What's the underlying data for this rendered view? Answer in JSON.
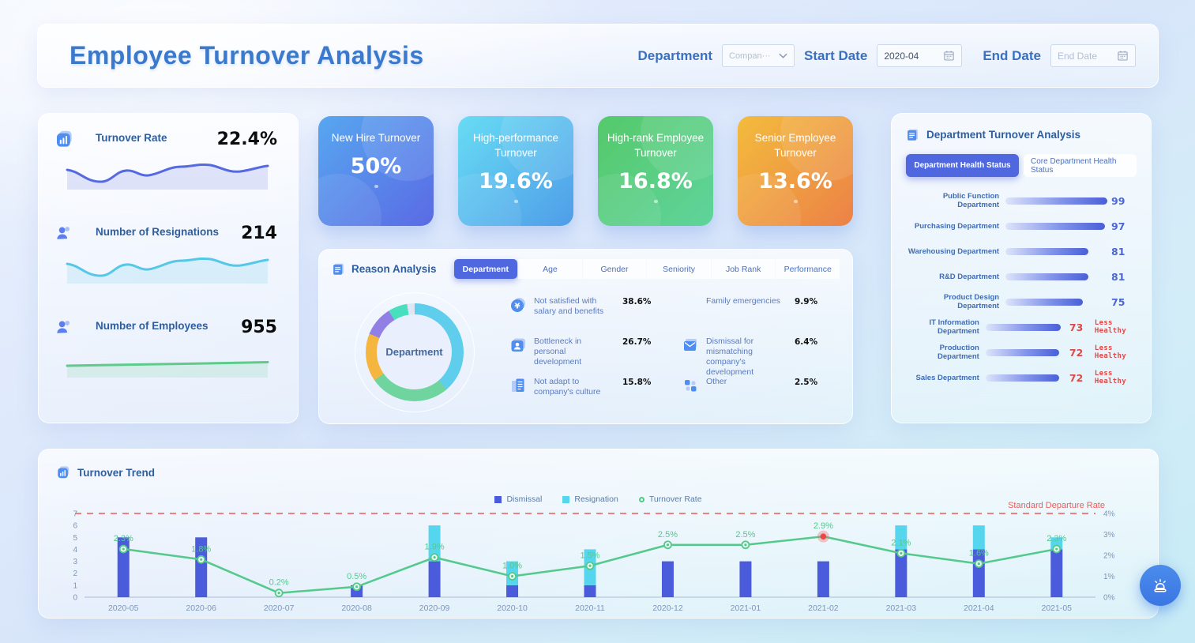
{
  "header": {
    "title": "Employee Turnover Analysis",
    "department_label": "Department",
    "department_value": "Compan···",
    "start_date_label": "Start Date",
    "start_date_value": "2020-04",
    "end_date_label": "End Date",
    "end_date_placeholder": "End Date"
  },
  "stats": {
    "items": [
      {
        "label": "Turnover Rate",
        "value": "22.4%",
        "color": "#5569e0"
      },
      {
        "label": "Number of Resignations",
        "value": "214",
        "color": "#55c8e8"
      },
      {
        "label": "Number of Employees",
        "value": "955",
        "color": "#5ecb8a"
      }
    ]
  },
  "kpi_cards": [
    {
      "title": "New Hire Turnover",
      "value": "50%",
      "from": "#57a7f0",
      "to": "#5a6ae4"
    },
    {
      "title": "High-performance Turnover",
      "value": "19.6%",
      "from": "#68dcf4",
      "to": "#4f9de8"
    },
    {
      "title": "High-rank Employee Turnover",
      "value": "16.8%",
      "from": "#55c96a",
      "to": "#5fd49c"
    },
    {
      "title": "Senior Employee Turnover",
      "value": "13.6%",
      "from": "#f3bc3c",
      "to": "#ec8147"
    }
  ],
  "reason": {
    "title": "Reason Analysis",
    "tabs": [
      {
        "label": "Department",
        "active": true
      },
      {
        "label": "Age",
        "active": false
      },
      {
        "label": "Gender",
        "active": false
      },
      {
        "label": "Seniority",
        "active": false
      },
      {
        "label": "Job Rank",
        "active": false
      },
      {
        "label": "Performance",
        "active": false
      }
    ],
    "center_label": "Department",
    "items": [
      {
        "label": "Not satisfied with salary and benefits",
        "value": "38.6%",
        "pct": 38.6,
        "color": "#5fcdec"
      },
      {
        "label": "Bottleneck in personal development",
        "value": "26.7%",
        "pct": 26.7,
        "color": "#6fd49e"
      },
      {
        "label": "Not adapt to company's culture",
        "value": "15.8%",
        "pct": 15.8,
        "color": "#f5b63f"
      },
      {
        "label": "Family emergencies",
        "value": "9.9%",
        "pct": 9.9,
        "color": "#927fe6"
      },
      {
        "label": "Dismissal for mismatching company's development",
        "value": "6.4%",
        "pct": 6.4,
        "color": "#49debe"
      },
      {
        "label": "Other",
        "value": "2.5%",
        "pct": 2.5,
        "color": "#dfe7f6"
      }
    ]
  },
  "department_panel": {
    "title": "Department Turnover Analysis",
    "tabs": [
      {
        "label": "Department Health Status",
        "active": true
      },
      {
        "label": "Core Department Health Status",
        "active": false
      }
    ],
    "max": 100,
    "rows": [
      {
        "label": "Public Function Department",
        "value": 99,
        "status": ""
      },
      {
        "label": "Purchasing Department",
        "value": 97,
        "status": ""
      },
      {
        "label": "Warehousing Department",
        "value": 81,
        "status": ""
      },
      {
        "label": "R&D Department",
        "value": 81,
        "status": ""
      },
      {
        "label": "Product Design Department",
        "value": 75,
        "status": ""
      },
      {
        "label": "IT Information Department",
        "value": 73,
        "status": "Less Healthy"
      },
      {
        "label": "Production Department",
        "value": 72,
        "status": "Less Healthy"
      },
      {
        "label": "Sales Department",
        "value": 72,
        "status": "Less Healthy"
      }
    ]
  },
  "trend": {
    "title": "Turnover Trend",
    "legend": [
      {
        "label": "Dismissal",
        "color": "#4a5cdc",
        "shape": "square"
      },
      {
        "label": "Resignation",
        "color": "#55d6ee",
        "shape": "square"
      },
      {
        "label": "Turnover Rate",
        "color": "#54c98c",
        "shape": "circle"
      }
    ],
    "chart_data": {
      "type": "bar+line",
      "categories": [
        "2020-05",
        "2020-06",
        "2020-07",
        "2020-08",
        "2020-09",
        "2020-10",
        "2020-11",
        "2020-12",
        "2021-01",
        "2021-02",
        "2021-03",
        "2021-04",
        "2021-05"
      ],
      "series": [
        {
          "name": "Dismissal",
          "type": "bar",
          "stack": true,
          "color": "#4a5cdc",
          "values": [
            5,
            5,
            0,
            1,
            3,
            1,
            1,
            3,
            3,
            3,
            4,
            4,
            4
          ]
        },
        {
          "name": "Resignation",
          "type": "bar",
          "stack": true,
          "color": "#55d6ee",
          "values": [
            0,
            0,
            0,
            0,
            3,
            2,
            3,
            0,
            0,
            0,
            2,
            2,
            1
          ]
        },
        {
          "name": "Turnover Rate",
          "type": "line",
          "color": "#54c98c",
          "unit": "%",
          "values": [
            2.3,
            1.8,
            0.2,
            0.5,
            1.9,
            1.0,
            1.5,
            2.5,
            2.5,
            2.9,
            2.1,
            1.6,
            2.3
          ]
        }
      ],
      "left_axis": {
        "min": 0,
        "max": 7,
        "ticks": [
          0,
          1,
          2,
          3,
          4,
          5,
          6,
          7
        ]
      },
      "right_axis": {
        "min": 0,
        "max": 4,
        "ticks": [
          "0%",
          "1%",
          "2%",
          "3%",
          "4%"
        ]
      },
      "threshold": {
        "label": "Standard Departure Rate",
        "value": 4,
        "color": "#f08080"
      },
      "highlight": {
        "index": 9,
        "color": "#e84848"
      }
    }
  }
}
